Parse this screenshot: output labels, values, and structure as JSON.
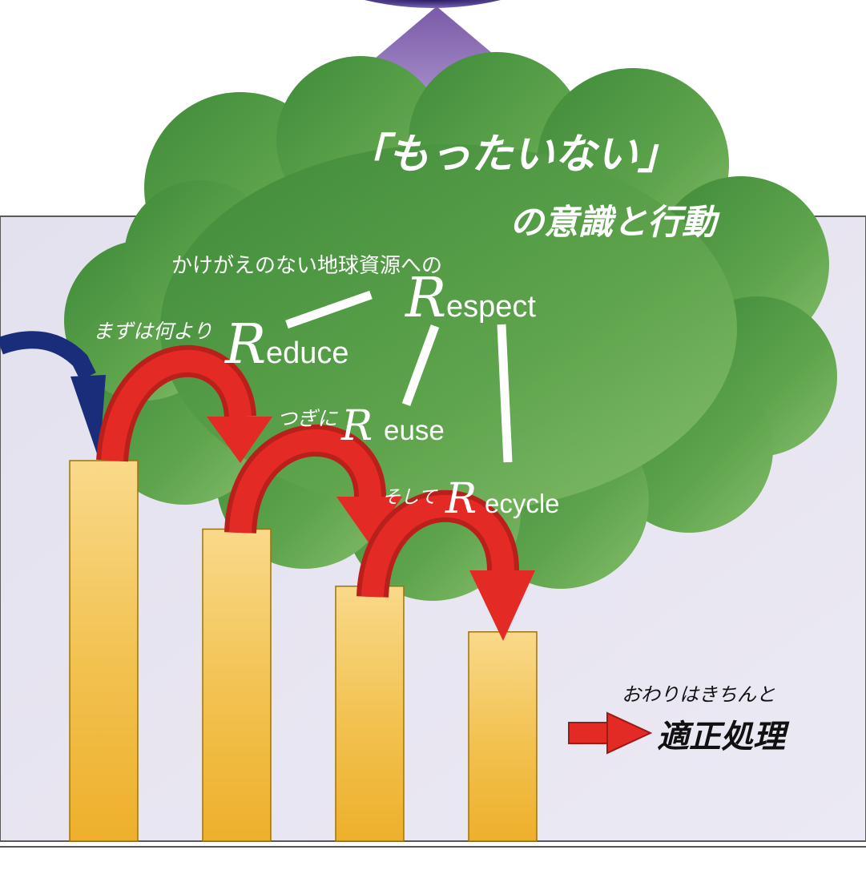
{
  "colors": {
    "panel": "#e6e3f0",
    "cloud_dark": "#3f8a3a",
    "cloud_light": "#7db766",
    "bar_top": "#f9d98a",
    "bar_bottom": "#eeb02c",
    "up_arrow": "#8a6bb7",
    "red_arrow": "#e32a24",
    "blue_arrow": "#1a2d7a"
  },
  "cloud": {
    "title_line1": "「もったいない」",
    "title_line2": "の意識と行動",
    "respect_intro": "かけがえのない地球資源への",
    "reduce_prefix": "まずは何より",
    "reuse_prefix": "つぎに",
    "recycle_prefix": "そして",
    "r_letter": "R",
    "respect_suffix": "espect",
    "reduce_suffix": "educe",
    "reuse_suffix": "euse",
    "recycle_suffix": "ecycle"
  },
  "footer": {
    "end_caption": "おわりはきちんと",
    "end_label": "適正処理"
  },
  "chart_data": {
    "type": "bar",
    "categories": [
      "",
      "",
      "",
      ""
    ],
    "values": [
      100,
      82,
      67,
      55
    ],
    "xlabel": "",
    "ylabel": ""
  }
}
